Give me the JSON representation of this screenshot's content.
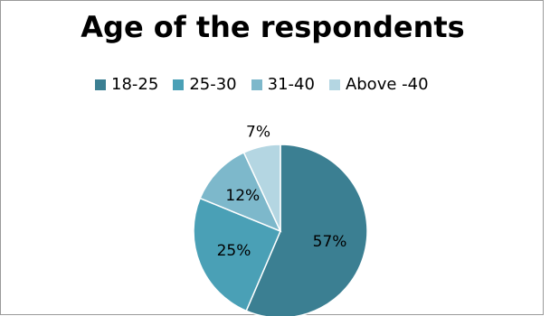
{
  "chart_data": {
    "type": "pie",
    "title": "Age of the respondents",
    "categories": [
      "18-25",
      "25-30",
      "31-40",
      "Above -40"
    ],
    "values": [
      57,
      25,
      12,
      7
    ],
    "labels": [
      "57%",
      "25%",
      "12%",
      "7%"
    ],
    "colors": [
      "#3b7f92",
      "#4aa0b6",
      "#7db8cb",
      "#b4d6e2"
    ],
    "legend_position": "top"
  }
}
